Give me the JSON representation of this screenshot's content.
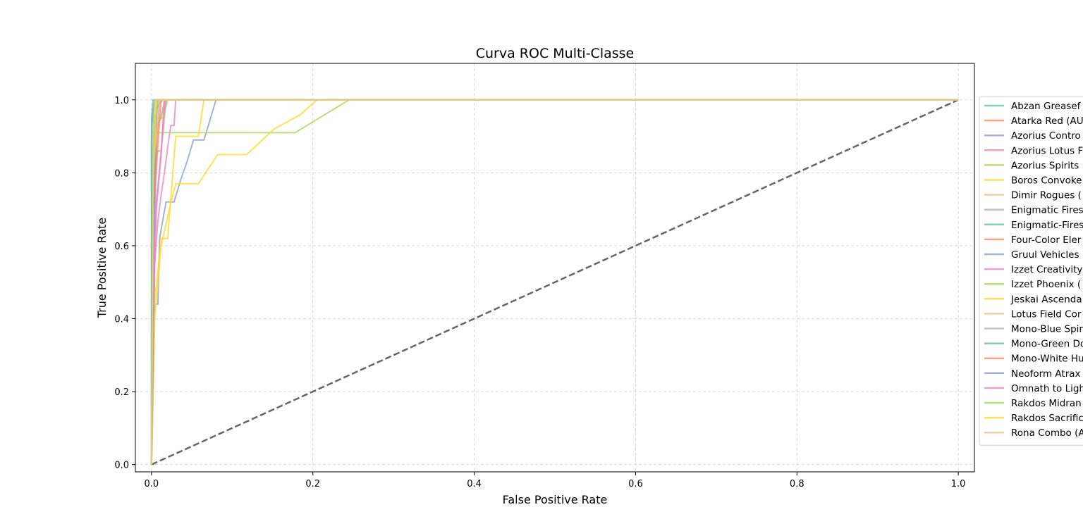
{
  "chart_data": {
    "type": "line",
    "title": "Curva ROC Multi-Classe",
    "xlabel": "False Positive Rate",
    "ylabel": "True Positive Rate",
    "xlim": [
      -0.02,
      1.02
    ],
    "ylim": [
      -0.02,
      1.1
    ],
    "xticks": [
      0.0,
      0.2,
      0.4,
      0.6,
      0.8,
      1.0
    ],
    "yticks": [
      0.0,
      0.2,
      0.4,
      0.6,
      0.8,
      1.0
    ],
    "xtick_labels": [
      "0.0",
      "0.2",
      "0.4",
      "0.6",
      "0.8",
      "1.0"
    ],
    "ytick_labels": [
      "0.0",
      "0.2",
      "0.4",
      "0.6",
      "0.8",
      "1.0"
    ],
    "grid": true,
    "legend_position": "right",
    "diagonal": {
      "x": [
        0,
        1
      ],
      "y": [
        0,
        1
      ],
      "color": "#666666",
      "style": "dashed"
    },
    "series": [
      {
        "name": "Abzan Greasef",
        "color": "#66c2a5",
        "x": [
          0,
          0,
          0.002,
          0.002,
          0.004,
          1
        ],
        "y": [
          0,
          0.9,
          0.9,
          0.97,
          1,
          1
        ]
      },
      {
        "name": "Atarka Red (AU",
        "color": "#fc8d62",
        "x": [
          0,
          0,
          0.004,
          0.006,
          0.008,
          0.012,
          0.016,
          1
        ],
        "y": [
          0,
          0.6,
          0.75,
          0.85,
          0.86,
          0.86,
          1,
          1
        ]
      },
      {
        "name": "Azorius Contro",
        "color": "#8da0cb",
        "x": [
          0,
          0.002,
          0.004,
          0.008,
          0.01,
          0.018,
          0.028,
          0.036,
          0.044,
          0.052,
          0.065,
          0.08,
          1
        ],
        "y": [
          0,
          0.2,
          0.44,
          0.44,
          0.62,
          0.72,
          0.72,
          0.78,
          0.83,
          0.89,
          0.89,
          1,
          1
        ]
      },
      {
        "name": "Azorius Lotus F",
        "color": "#e78ac3",
        "x": [
          0,
          0.004,
          0.008,
          0.012,
          0.016,
          0.02,
          0.024,
          0.028,
          0.03,
          1
        ],
        "y": [
          0,
          0.55,
          0.67,
          0.74,
          0.8,
          0.87,
          0.93,
          0.93,
          1,
          1
        ]
      },
      {
        "name": "Azorius Spirits",
        "color": "#a6d854",
        "x": [
          0,
          0.002,
          0.004,
          0.178,
          0.245,
          1
        ],
        "y": [
          0,
          0.88,
          0.91,
          0.91,
          1,
          1
        ]
      },
      {
        "name": "Boros Convoke",
        "color": "#ffd92f",
        "x": [
          0,
          0.004,
          0.012,
          0.02,
          0.03,
          0.058,
          0.065,
          0.07,
          1
        ],
        "y": [
          0,
          0.45,
          0.62,
          0.62,
          0.9,
          0.9,
          1,
          1,
          1
        ]
      },
      {
        "name": "Dimir Rogues (",
        "color": "#e5c494",
        "x": [
          0,
          0,
          0.004,
          0.018,
          1
        ],
        "y": [
          0,
          0.88,
          0.9,
          1,
          1
        ]
      },
      {
        "name": "Enigmatic Fires",
        "color": "#b3b3b3",
        "x": [
          0,
          0.004,
          0.012,
          0.016,
          1
        ],
        "y": [
          0,
          0.92,
          0.95,
          1,
          1
        ]
      },
      {
        "name": "Enigmatic-Fires",
        "color": "#66c2a5",
        "x": [
          0,
          0,
          0.002,
          1
        ],
        "y": [
          0,
          0.95,
          1,
          1
        ]
      },
      {
        "name": "Four-Color Eler",
        "color": "#fc8d62",
        "x": [
          0,
          0.002,
          0.006,
          0.01,
          1
        ],
        "y": [
          0,
          0.7,
          0.86,
          1,
          1
        ]
      },
      {
        "name": "Gruul Vehicles",
        "color": "#8da0cb",
        "x": [
          0,
          0.004,
          0.006,
          0.008,
          0.01,
          0.014,
          1
        ],
        "y": [
          0,
          0.6,
          0.98,
          0.98,
          0.99,
          1,
          1
        ]
      },
      {
        "name": "Izzet Creativity",
        "color": "#e78ac3",
        "x": [
          0,
          0.002,
          0.006,
          0.012,
          0.016,
          1
        ],
        "y": [
          0,
          0.4,
          0.7,
          0.85,
          1,
          1
        ]
      },
      {
        "name": "Izzet Phoenix (",
        "color": "#a6d854",
        "x": [
          0,
          0.002,
          0.006,
          0.014,
          0.02,
          1
        ],
        "y": [
          0,
          0.9,
          0.95,
          0.95,
          1,
          1
        ]
      },
      {
        "name": "Jeskai Ascenda",
        "color": "#ffd92f",
        "x": [
          0,
          0.004,
          0.012,
          0.022,
          0.03,
          0.058,
          0.082,
          0.118,
          0.152,
          0.185,
          0.205,
          1
        ],
        "y": [
          0,
          0.4,
          0.6,
          0.7,
          0.77,
          0.77,
          0.85,
          0.85,
          0.92,
          0.96,
          1,
          1
        ]
      },
      {
        "name": "Lotus Field Cor",
        "color": "#e5c494",
        "x": [
          0,
          0.002,
          0.01,
          1
        ],
        "y": [
          0,
          0.8,
          1,
          1
        ]
      },
      {
        "name": "Mono-Blue Spir",
        "color": "#b3b3b3",
        "x": [
          0,
          0.002,
          0.006,
          1
        ],
        "y": [
          0,
          0.85,
          1,
          1
        ]
      },
      {
        "name": "Mono-Green Do",
        "color": "#66c2a5",
        "x": [
          0,
          0,
          0.004,
          1
        ],
        "y": [
          0,
          0.93,
          1,
          1
        ]
      },
      {
        "name": "Mono-White Hu",
        "color": "#fc8d62",
        "x": [
          0,
          0.002,
          0.008,
          0.012,
          1
        ],
        "y": [
          0,
          0.65,
          0.88,
          1,
          1
        ]
      },
      {
        "name": "Neoform Atrax",
        "color": "#8da0cb",
        "x": [
          0,
          0.002,
          0.004,
          0.008,
          1
        ],
        "y": [
          0,
          0.3,
          0.9,
          1,
          1
        ]
      },
      {
        "name": "Omnath to Ligh",
        "color": "#e78ac3",
        "x": [
          0,
          0.002,
          0.006,
          0.012,
          0.018,
          1
        ],
        "y": [
          0,
          0.5,
          0.72,
          0.86,
          1,
          1
        ]
      },
      {
        "name": "Rakdos Midran",
        "color": "#a6d854",
        "x": [
          0,
          0.002,
          0.008,
          1
        ],
        "y": [
          0,
          0.92,
          1,
          1
        ]
      },
      {
        "name": "Rakdos Sacrific",
        "color": "#ffd92f",
        "x": [
          0,
          0.002,
          0.006,
          1
        ],
        "y": [
          0,
          0.78,
          1,
          1
        ]
      },
      {
        "name": "Rona Combo (A",
        "color": "#e5c494",
        "x": [
          0,
          0.002,
          0.004,
          1
        ],
        "y": [
          0,
          0.9,
          1,
          1
        ]
      }
    ]
  }
}
